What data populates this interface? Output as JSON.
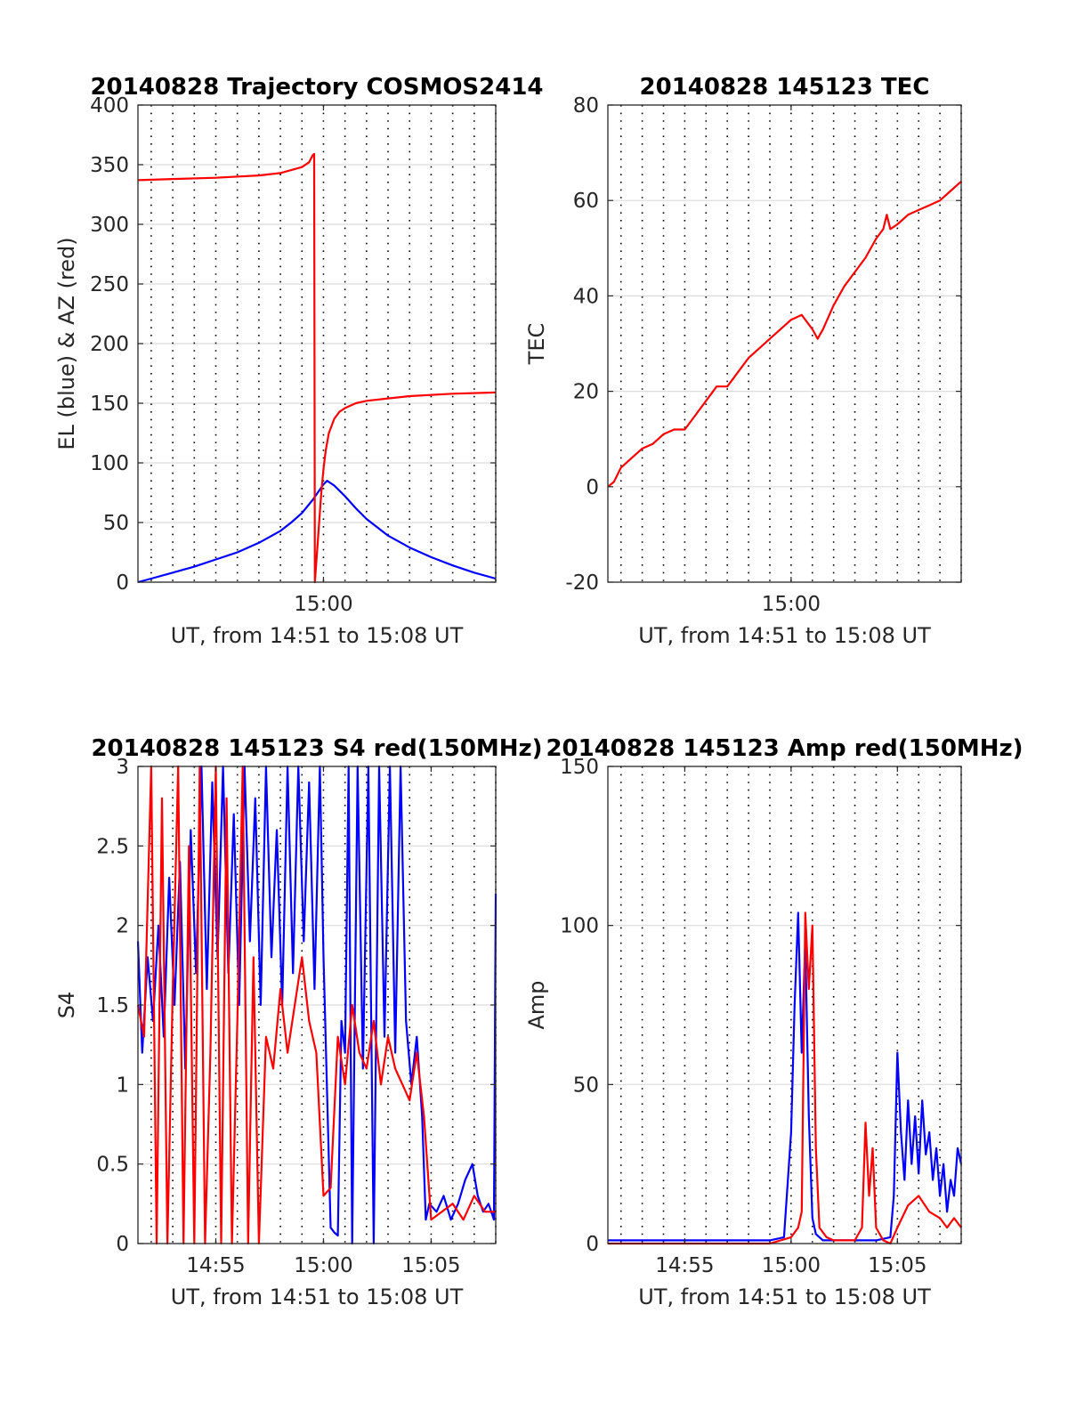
{
  "figure": {
    "background": "#ffffff",
    "colors": {
      "red": "#ff0000",
      "blue": "#0000ff"
    }
  },
  "chart_data": [
    {
      "type": "line",
      "title": "20140828 Trajectory COSMOS2414",
      "xlabel": "UT, from 14:51 to 15:08 UT",
      "ylabel": "EL (blue) & AZ (red)",
      "xlim": [
        "14:51:23",
        "15:08:00"
      ],
      "ylim": [
        0,
        400
      ],
      "yticks": [
        0,
        50,
        100,
        150,
        200,
        250,
        300,
        350,
        400
      ],
      "xtick_labels": [
        {
          "t": "15:00",
          "label": "15:00"
        }
      ],
      "grid": true,
      "series": [
        {
          "color": "#0000ff",
          "x": [
            "14:51:23",
            "14:52:00",
            "14:53:00",
            "14:54:00",
            "14:55:00",
            "14:56:00",
            "14:57:00",
            "14:58:00",
            "14:58:30",
            "14:59:00",
            "14:59:30",
            "15:00:00",
            "15:00:10",
            "15:00:30",
            "15:01:00",
            "15:01:30",
            "15:02:00",
            "15:03:00",
            "15:04:00",
            "15:05:00",
            "15:06:00",
            "15:07:00",
            "15:08:00"
          ],
          "y": [
            0,
            3,
            8,
            13,
            19,
            25,
            33,
            43,
            50,
            58,
            69,
            82,
            85,
            81,
            72,
            62,
            53,
            39,
            29,
            21,
            14,
            8,
            3
          ]
        },
        {
          "color": "#ff0000",
          "x": [
            "14:51:23",
            "14:53:00",
            "14:55:00",
            "14:57:00",
            "14:58:00",
            "14:59:00",
            "14:59:20",
            "14:59:30",
            "14:59:34",
            "14:59:36",
            "14:59:42",
            "14:59:48",
            "14:59:54",
            "15:00:00",
            "15:00:06",
            "15:00:15",
            "15:00:30",
            "15:00:45",
            "15:01:00",
            "15:01:30",
            "15:02:00",
            "15:03:00",
            "15:04:00",
            "15:06:00",
            "15:08:00"
          ],
          "y": [
            337,
            338,
            339,
            341,
            343,
            348,
            352,
            358,
            359,
            0,
            25,
            50,
            75,
            95,
            110,
            125,
            137,
            143,
            146,
            150,
            152,
            154,
            156,
            158,
            159
          ]
        }
      ]
    },
    {
      "type": "line",
      "title": "20140828 145123 TEC",
      "xlabel": "UT, from 14:51 to 15:08 UT",
      "ylabel": "TEC",
      "xlim": [
        "14:51:23",
        "15:08:00"
      ],
      "ylim": [
        -20,
        80
      ],
      "yticks": [
        -20,
        0,
        20,
        40,
        60,
        80
      ],
      "xtick_labels": [
        {
          "t": "15:00",
          "label": "15:00"
        }
      ],
      "grid": true,
      "series": [
        {
          "color": "#ff0000",
          "x": [
            "14:51:23",
            "14:51:40",
            "14:52:00",
            "14:52:30",
            "14:53:00",
            "14:53:30",
            "14:54:00",
            "14:54:30",
            "14:55:00",
            "14:55:30",
            "14:56:00",
            "14:56:30",
            "14:57:00",
            "14:57:30",
            "14:58:00",
            "14:58:30",
            "14:59:00",
            "14:59:30",
            "15:00:00",
            "15:00:30",
            "15:01:00",
            "15:01:15",
            "15:01:30",
            "15:02:00",
            "15:02:30",
            "15:03:00",
            "15:03:30",
            "15:04:00",
            "15:04:20",
            "15:04:30",
            "15:04:40",
            "15:05:00",
            "15:05:30",
            "15:06:00",
            "15:06:30",
            "15:07:00",
            "15:07:30",
            "15:08:00"
          ],
          "y": [
            0,
            1,
            4,
            6,
            8,
            9,
            11,
            12,
            12,
            15,
            18,
            21,
            21,
            24,
            27,
            29,
            31,
            33,
            35,
            36,
            33,
            31,
            33,
            38,
            42,
            45,
            48,
            52,
            54,
            57,
            54,
            55,
            57,
            58,
            59,
            60,
            62,
            64
          ]
        }
      ]
    },
    {
      "type": "line",
      "title": "20140828 145123 S4 red(150MHz)",
      "xlabel": "UT, from 14:51 to 15:08 UT",
      "ylabel": "S4",
      "xlim": [
        "14:51:23",
        "15:08:00"
      ],
      "ylim": [
        0,
        3
      ],
      "yticks": [
        0,
        0.5,
        1,
        1.5,
        2,
        2.5,
        3
      ],
      "xtick_labels": [
        {
          "t": "14:55",
          "label": "14:55"
        },
        {
          "t": "15:00",
          "label": "15:00"
        },
        {
          "t": "15:05",
          "label": "15:05"
        }
      ],
      "grid": true,
      "series": [
        {
          "color": "#0000ff",
          "x": [
            "14:51:23",
            "14:51:35",
            "14:51:50",
            "14:52:05",
            "14:52:20",
            "14:52:35",
            "14:52:50",
            "14:53:05",
            "14:53:20",
            "14:53:35",
            "14:53:50",
            "14:54:05",
            "14:54:20",
            "14:54:35",
            "14:54:50",
            "14:55:05",
            "14:55:20",
            "14:55:35",
            "14:55:50",
            "14:56:05",
            "14:56:20",
            "14:56:35",
            "14:56:50",
            "14:57:05",
            "14:57:20",
            "14:57:35",
            "14:57:50",
            "14:58:05",
            "14:58:20",
            "14:58:35",
            "14:58:50",
            "14:59:05",
            "14:59:20",
            "14:59:35",
            "14:59:50",
            "15:00:00",
            "15:00:20",
            "15:00:30",
            "15:00:40",
            "15:00:50",
            "15:01:00",
            "15:01:10",
            "15:01:20",
            "15:01:35",
            "15:01:50",
            "15:02:05",
            "15:02:20",
            "15:02:35",
            "15:02:50",
            "15:03:05",
            "15:03:20",
            "15:03:35",
            "15:03:50",
            "15:04:05",
            "15:04:20",
            "15:04:35",
            "15:04:45",
            "15:04:55",
            "15:05:15",
            "15:05:35",
            "15:05:55",
            "15:06:15",
            "15:06:35",
            "15:06:55",
            "15:07:10",
            "15:07:25",
            "15:07:40",
            "15:07:55",
            "15:08:00"
          ],
          "y": [
            1.9,
            1.2,
            1.8,
            1.4,
            2.0,
            1.3,
            2.3,
            1.5,
            2.4,
            1.1,
            2.6,
            1.7,
            3.0,
            1.6,
            2.9,
            1.8,
            3.0,
            1.7,
            2.7,
            1.5,
            3.0,
            1.9,
            2.8,
            1.5,
            3.0,
            1.8,
            2.6,
            1.5,
            3.0,
            1.7,
            3.0,
            1.9,
            2.9,
            1.6,
            3.0,
            1.8,
            0.1,
            0.07,
            0.05,
            1.4,
            1.2,
            3.0,
            0,
            3.0,
            1.1,
            3.0,
            0,
            3.0,
            1.3,
            3.0,
            1.2,
            3.0,
            1.4,
            1.0,
            1.3,
            0.8,
            0.15,
            0.25,
            0.2,
            0.3,
            0.15,
            0.25,
            0.4,
            0.5,
            0.3,
            0.2,
            0.25,
            0.15,
            2.2
          ]
        },
        {
          "color": "#ff0000",
          "x": [
            "14:51:23",
            "14:51:40",
            "14:52:00",
            "14:52:15",
            "14:52:30",
            "14:52:45",
            "14:53:00",
            "14:53:15",
            "14:53:30",
            "14:53:45",
            "14:54:00",
            "14:54:15",
            "14:54:30",
            "14:54:45",
            "14:55:00",
            "14:55:15",
            "14:55:30",
            "14:55:45",
            "14:56:00",
            "14:56:15",
            "14:56:30",
            "14:56:45",
            "14:57:00",
            "14:57:20",
            "14:57:40",
            "14:58:00",
            "14:58:20",
            "14:58:40",
            "14:59:00",
            "14:59:20",
            "14:59:40",
            "15:00:00",
            "15:00:20",
            "15:00:40",
            "15:01:00",
            "15:01:20",
            "15:01:40",
            "15:02:00",
            "15:02:20",
            "15:02:40",
            "15:03:00",
            "15:03:20",
            "15:03:40",
            "15:04:00",
            "15:04:20",
            "15:04:40",
            "15:05:00",
            "15:05:30",
            "15:06:00",
            "15:06:30",
            "15:07:00",
            "15:07:30",
            "15:08:00"
          ],
          "y": [
            1.5,
            1.3,
            3.0,
            0,
            2.8,
            0,
            1.6,
            3.0,
            0,
            2.5,
            0,
            3.0,
            0,
            1.2,
            3.0,
            0,
            2.8,
            0,
            1.4,
            3.0,
            0,
            1.8,
            0,
            1.3,
            1.1,
            1.6,
            1.2,
            1.5,
            1.8,
            1.4,
            1.2,
            0.3,
            0.35,
            1.3,
            1.0,
            1.5,
            1.2,
            1.1,
            1.4,
            1.0,
            1.3,
            1.1,
            1.0,
            0.9,
            1.2,
            0.8,
            0.15,
            0.2,
            0.25,
            0.15,
            0.3,
            0.2,
            0.2
          ]
        }
      ]
    },
    {
      "type": "line",
      "title": "20140828 145123 Amp red(150MHz)",
      "xlabel": "UT, from 14:51 to 15:08 UT",
      "ylabel": "Amp",
      "xlim": [
        "14:51:23",
        "15:08:00"
      ],
      "ylim": [
        0,
        150
      ],
      "yticks": [
        0,
        50,
        100,
        150
      ],
      "xtick_labels": [
        {
          "t": "14:55",
          "label": "14:55"
        },
        {
          "t": "15:00",
          "label": "15:00"
        },
        {
          "t": "15:05",
          "label": "15:05"
        }
      ],
      "grid": true,
      "series": [
        {
          "color": "#0000ff",
          "x": [
            "14:51:23",
            "14:53:00",
            "14:55:00",
            "14:57:00",
            "14:59:00",
            "14:59:40",
            "15:00:00",
            "15:00:10",
            "15:00:20",
            "15:00:30",
            "15:00:40",
            "15:00:50",
            "15:01:00",
            "15:01:10",
            "15:01:20",
            "15:01:30",
            "15:02:00",
            "15:03:00",
            "15:04:00",
            "15:04:40",
            "15:04:50",
            "15:05:00",
            "15:05:10",
            "15:05:20",
            "15:05:30",
            "15:05:40",
            "15:05:50",
            "15:06:00",
            "15:06:10",
            "15:06:20",
            "15:06:30",
            "15:06:40",
            "15:06:50",
            "15:07:00",
            "15:07:10",
            "15:07:20",
            "15:07:30",
            "15:07:40",
            "15:07:50",
            "15:08:00"
          ],
          "y": [
            1,
            1,
            1,
            1,
            1,
            2,
            35,
            75,
            104,
            60,
            95,
            40,
            8,
            3,
            2,
            1,
            1,
            1,
            1,
            2,
            15,
            60,
            35,
            20,
            45,
            25,
            40,
            22,
            45,
            28,
            35,
            20,
            30,
            15,
            25,
            10,
            20,
            15,
            30,
            25
          ]
        },
        {
          "color": "#ff0000",
          "x": [
            "14:51:23",
            "14:55:00",
            "14:59:00",
            "15:00:00",
            "15:00:20",
            "15:00:30",
            "15:00:40",
            "15:00:50",
            "15:01:00",
            "15:01:10",
            "15:01:20",
            "15:01:40",
            "15:02:00",
            "15:03:00",
            "15:03:20",
            "15:03:30",
            "15:03:40",
            "15:03:50",
            "15:04:00",
            "15:04:20",
            "15:04:40",
            "15:05:00",
            "15:05:30",
            "15:06:00",
            "15:06:30",
            "15:07:00",
            "15:07:20",
            "15:07:40",
            "15:08:00"
          ],
          "y": [
            0,
            0,
            0,
            2,
            5,
            10,
            104,
            80,
            100,
            30,
            5,
            2,
            1,
            1,
            5,
            38,
            15,
            30,
            5,
            1,
            0,
            5,
            12,
            15,
            10,
            8,
            5,
            8,
            5
          ]
        }
      ]
    }
  ]
}
